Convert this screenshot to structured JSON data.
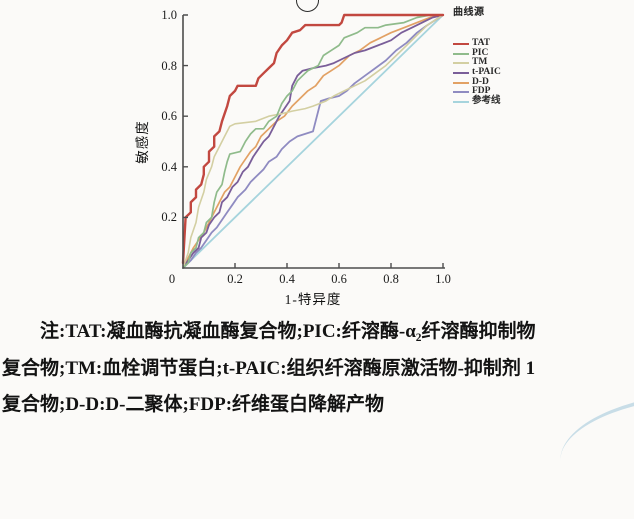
{
  "chart_data": {
    "type": "line",
    "title": "",
    "xlabel": "1-特异度",
    "ylabel": "敏感度",
    "xlim": [
      0,
      1
    ],
    "ylim": [
      0,
      1
    ],
    "grid": false,
    "origin_label": "0",
    "x_tick_values": [
      0.2,
      0.4,
      0.6,
      0.8,
      1.0
    ],
    "x_tick_labels": [
      "0.2",
      "0.4",
      "0.6",
      "0.8",
      "1.0"
    ],
    "y_tick_values": [
      0.2,
      0.4,
      0.6,
      0.8,
      1.0
    ],
    "y_tick_labels": [
      "0.2",
      "0.4",
      "0.6",
      "0.8",
      "1.0"
    ],
    "legend_title": "曲线源",
    "legend_position": "right-top",
    "axis_color": "#4d4d4d",
    "series": [
      {
        "name": "TAT",
        "color": "#c24840",
        "width": 2.4,
        "points": [
          [
            0,
            0.02
          ],
          [
            0.01,
            0.2
          ],
          [
            0.03,
            0.22
          ],
          [
            0.03,
            0.26
          ],
          [
            0.05,
            0.28
          ],
          [
            0.05,
            0.31
          ],
          [
            0.07,
            0.33
          ],
          [
            0.08,
            0.37
          ],
          [
            0.08,
            0.4
          ],
          [
            0.1,
            0.42
          ],
          [
            0.1,
            0.46
          ],
          [
            0.12,
            0.48
          ],
          [
            0.12,
            0.52
          ],
          [
            0.14,
            0.54
          ],
          [
            0.15,
            0.58
          ],
          [
            0.16,
            0.61
          ],
          [
            0.17,
            0.64
          ],
          [
            0.18,
            0.68
          ],
          [
            0.2,
            0.7
          ],
          [
            0.21,
            0.72
          ],
          [
            0.28,
            0.72
          ],
          [
            0.29,
            0.75
          ],
          [
            0.31,
            0.77
          ],
          [
            0.33,
            0.79
          ],
          [
            0.35,
            0.81
          ],
          [
            0.36,
            0.85
          ],
          [
            0.38,
            0.88
          ],
          [
            0.4,
            0.9
          ],
          [
            0.42,
            0.93
          ],
          [
            0.45,
            0.94
          ],
          [
            0.47,
            0.96
          ],
          [
            0.6,
            0.96
          ],
          [
            0.61,
            0.97
          ],
          [
            0.62,
            1.0
          ],
          [
            1.0,
            1.0
          ]
        ]
      },
      {
        "name": "PIC",
        "color": "#8fbb8b",
        "width": 1.7,
        "points": [
          [
            0,
            0
          ],
          [
            0.02,
            0.02
          ],
          [
            0.03,
            0.06
          ],
          [
            0.05,
            0.08
          ],
          [
            0.06,
            0.12
          ],
          [
            0.08,
            0.14
          ],
          [
            0.09,
            0.18
          ],
          [
            0.11,
            0.2
          ],
          [
            0.12,
            0.26
          ],
          [
            0.13,
            0.3
          ],
          [
            0.15,
            0.33
          ],
          [
            0.16,
            0.38
          ],
          [
            0.17,
            0.42
          ],
          [
            0.18,
            0.45
          ],
          [
            0.22,
            0.46
          ],
          [
            0.24,
            0.5
          ],
          [
            0.26,
            0.53
          ],
          [
            0.28,
            0.55
          ],
          [
            0.31,
            0.55
          ],
          [
            0.33,
            0.58
          ],
          [
            0.36,
            0.6
          ],
          [
            0.38,
            0.65
          ],
          [
            0.4,
            0.68
          ],
          [
            0.42,
            0.7
          ],
          [
            0.44,
            0.74
          ],
          [
            0.46,
            0.76
          ],
          [
            0.48,
            0.78
          ],
          [
            0.52,
            0.8
          ],
          [
            0.54,
            0.84
          ],
          [
            0.57,
            0.86
          ],
          [
            0.6,
            0.88
          ],
          [
            0.62,
            0.91
          ],
          [
            0.67,
            0.93
          ],
          [
            0.7,
            0.95
          ],
          [
            0.75,
            0.95
          ],
          [
            0.78,
            0.96
          ],
          [
            0.85,
            0.97
          ],
          [
            0.9,
            0.99
          ],
          [
            0.95,
            1.0
          ],
          [
            1.0,
            1.0
          ]
        ]
      },
      {
        "name": "TM",
        "color": "#d3cfa2",
        "width": 1.6,
        "points": [
          [
            0,
            0
          ],
          [
            0.02,
            0.06
          ],
          [
            0.03,
            0.12
          ],
          [
            0.05,
            0.18
          ],
          [
            0.06,
            0.24
          ],
          [
            0.08,
            0.3
          ],
          [
            0.09,
            0.35
          ],
          [
            0.11,
            0.4
          ],
          [
            0.12,
            0.44
          ],
          [
            0.14,
            0.48
          ],
          [
            0.16,
            0.52
          ],
          [
            0.18,
            0.56
          ],
          [
            0.2,
            0.57
          ],
          [
            0.28,
            0.58
          ],
          [
            0.33,
            0.6
          ],
          [
            0.38,
            0.61
          ],
          [
            0.42,
            0.62
          ],
          [
            0.47,
            0.63
          ],
          [
            0.5,
            0.64
          ],
          [
            0.55,
            0.66
          ],
          [
            0.58,
            0.68
          ],
          [
            0.62,
            0.7
          ],
          [
            0.66,
            0.72
          ],
          [
            0.7,
            0.74
          ],
          [
            0.74,
            0.77
          ],
          [
            0.78,
            0.8
          ],
          [
            0.82,
            0.84
          ],
          [
            0.86,
            0.88
          ],
          [
            0.9,
            0.92
          ],
          [
            0.94,
            0.96
          ],
          [
            0.97,
            0.98
          ],
          [
            1.0,
            1.0
          ]
        ]
      },
      {
        "name": "t-PAIC",
        "color": "#7a5e99",
        "width": 1.8,
        "points": [
          [
            0,
            0
          ],
          [
            0.02,
            0.03
          ],
          [
            0.04,
            0.06
          ],
          [
            0.06,
            0.08
          ],
          [
            0.07,
            0.12
          ],
          [
            0.09,
            0.14
          ],
          [
            0.1,
            0.17
          ],
          [
            0.12,
            0.2
          ],
          [
            0.14,
            0.22
          ],
          [
            0.15,
            0.26
          ],
          [
            0.17,
            0.28
          ],
          [
            0.19,
            0.32
          ],
          [
            0.21,
            0.34
          ],
          [
            0.23,
            0.38
          ],
          [
            0.25,
            0.4
          ],
          [
            0.27,
            0.44
          ],
          [
            0.29,
            0.47
          ],
          [
            0.31,
            0.5
          ],
          [
            0.33,
            0.52
          ],
          [
            0.35,
            0.56
          ],
          [
            0.37,
            0.6
          ],
          [
            0.39,
            0.63
          ],
          [
            0.41,
            0.66
          ],
          [
            0.42,
            0.72
          ],
          [
            0.44,
            0.76
          ],
          [
            0.46,
            0.78
          ],
          [
            0.5,
            0.79
          ],
          [
            0.55,
            0.8
          ],
          [
            0.58,
            0.81
          ],
          [
            0.62,
            0.83
          ],
          [
            0.66,
            0.85
          ],
          [
            0.7,
            0.86
          ],
          [
            0.75,
            0.88
          ],
          [
            0.8,
            0.9
          ],
          [
            0.84,
            0.93
          ],
          [
            0.88,
            0.95
          ],
          [
            0.92,
            0.97
          ],
          [
            0.96,
            0.99
          ],
          [
            1.0,
            1.0
          ]
        ]
      },
      {
        "name": "D-D",
        "color": "#e2a164",
        "width": 1.7,
        "points": [
          [
            0,
            0
          ],
          [
            0.02,
            0.04
          ],
          [
            0.04,
            0.08
          ],
          [
            0.06,
            0.11
          ],
          [
            0.08,
            0.14
          ],
          [
            0.1,
            0.18
          ],
          [
            0.12,
            0.22
          ],
          [
            0.14,
            0.26
          ],
          [
            0.16,
            0.3
          ],
          [
            0.18,
            0.32
          ],
          [
            0.2,
            0.36
          ],
          [
            0.22,
            0.4
          ],
          [
            0.24,
            0.43
          ],
          [
            0.26,
            0.46
          ],
          [
            0.28,
            0.48
          ],
          [
            0.3,
            0.52
          ],
          [
            0.33,
            0.55
          ],
          [
            0.36,
            0.58
          ],
          [
            0.39,
            0.6
          ],
          [
            0.42,
            0.64
          ],
          [
            0.45,
            0.67
          ],
          [
            0.48,
            0.7
          ],
          [
            0.51,
            0.72
          ],
          [
            0.54,
            0.76
          ],
          [
            0.57,
            0.78
          ],
          [
            0.6,
            0.8
          ],
          [
            0.64,
            0.84
          ],
          [
            0.68,
            0.86
          ],
          [
            0.72,
            0.89
          ],
          [
            0.76,
            0.91
          ],
          [
            0.8,
            0.93
          ],
          [
            0.85,
            0.95
          ],
          [
            0.9,
            0.97
          ],
          [
            0.95,
            0.99
          ],
          [
            1.0,
            1.0
          ]
        ]
      },
      {
        "name": "FDP",
        "color": "#8f8bc1",
        "width": 1.8,
        "points": [
          [
            0,
            0
          ],
          [
            0.03,
            0.03
          ],
          [
            0.05,
            0.06
          ],
          [
            0.07,
            0.08
          ],
          [
            0.09,
            0.11
          ],
          [
            0.11,
            0.14
          ],
          [
            0.13,
            0.16
          ],
          [
            0.15,
            0.19
          ],
          [
            0.17,
            0.22
          ],
          [
            0.19,
            0.25
          ],
          [
            0.21,
            0.28
          ],
          [
            0.24,
            0.31
          ],
          [
            0.26,
            0.34
          ],
          [
            0.28,
            0.36
          ],
          [
            0.31,
            0.39
          ],
          [
            0.33,
            0.42
          ],
          [
            0.36,
            0.44
          ],
          [
            0.38,
            0.47
          ],
          [
            0.41,
            0.5
          ],
          [
            0.44,
            0.52
          ],
          [
            0.47,
            0.53
          ],
          [
            0.5,
            0.54
          ],
          [
            0.52,
            0.62
          ],
          [
            0.53,
            0.66
          ],
          [
            0.56,
            0.67
          ],
          [
            0.6,
            0.68
          ],
          [
            0.63,
            0.7
          ],
          [
            0.66,
            0.73
          ],
          [
            0.7,
            0.76
          ],
          [
            0.74,
            0.79
          ],
          [
            0.78,
            0.82
          ],
          [
            0.82,
            0.86
          ],
          [
            0.86,
            0.89
          ],
          [
            0.9,
            0.93
          ],
          [
            0.94,
            0.96
          ],
          [
            0.97,
            0.98
          ],
          [
            1.0,
            1.0
          ]
        ]
      },
      {
        "name": "参考线",
        "color": "#a6d4dd",
        "width": 1.8,
        "points": [
          [
            0,
            0
          ],
          [
            1,
            1
          ]
        ]
      }
    ]
  },
  "note": {
    "lines": [
      "注:TAT:凝血酶抗凝血酶复合物;PIC:纤溶酶-α₂纤溶酶抑制物",
      "复合物;TM:血栓调节蛋白;t-PAIC:组织纤溶酶原激活物-抑制剂 1",
      "复合物;D-D:D-二聚体;FDP:纤维蛋白降解产物"
    ]
  }
}
